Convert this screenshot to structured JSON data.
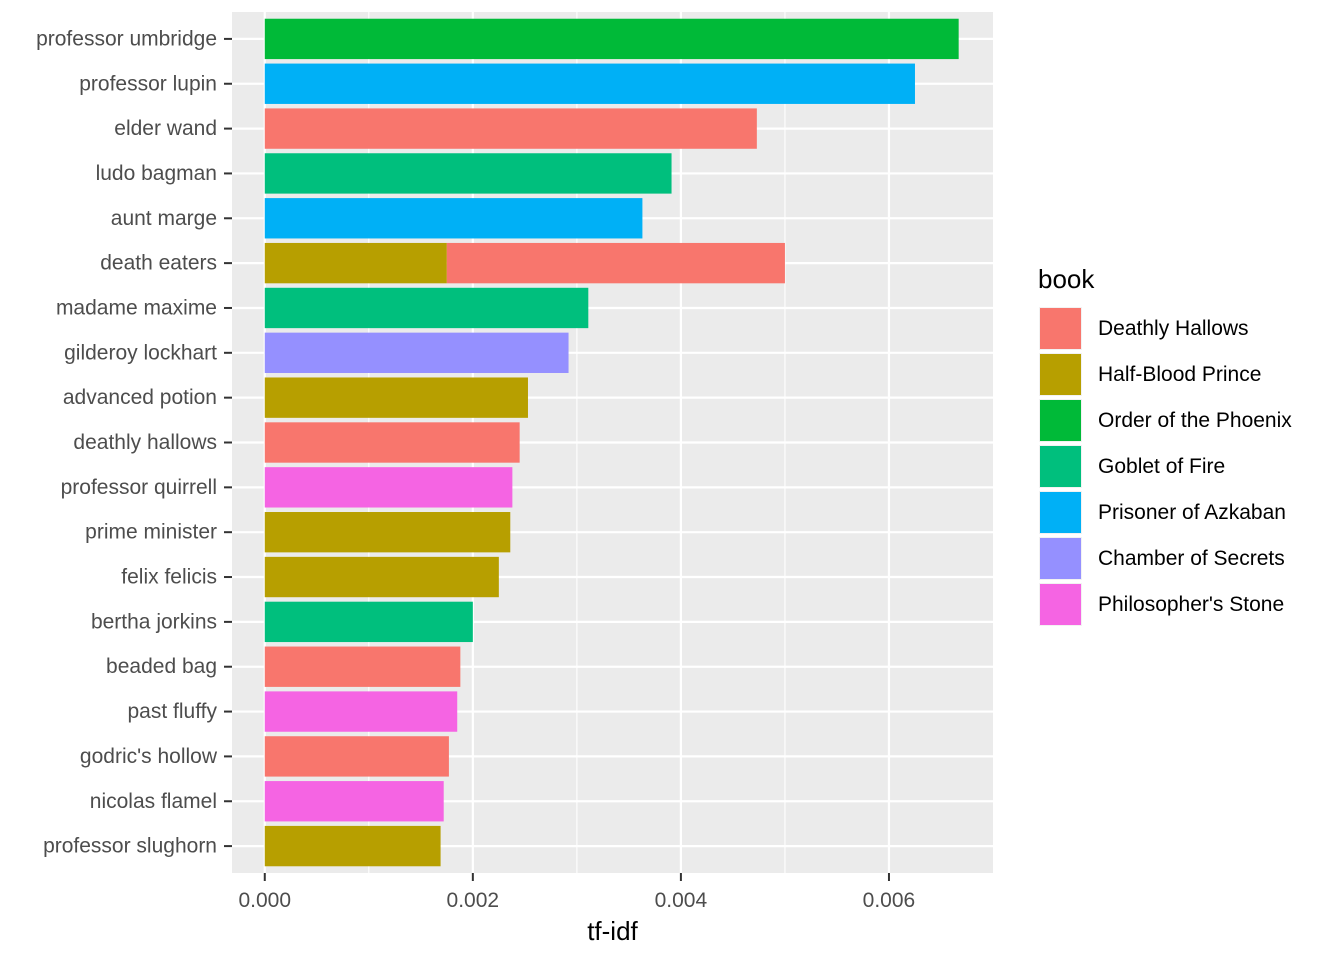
{
  "chart_data": {
    "type": "bar",
    "orientation": "horizontal",
    "stacked": true,
    "xlabel": "tf-idf",
    "ylabel": "",
    "xlim": [
      -0.000315,
      0.007
    ],
    "x_ticks": [
      {
        "value": 0.0,
        "label": "0.000"
      },
      {
        "value": 0.002,
        "label": "0.002"
      },
      {
        "value": 0.004,
        "label": "0.004"
      },
      {
        "value": 0.006,
        "label": "0.006"
      }
    ],
    "x_minor_ticks": [
      0.001,
      0.003,
      0.005
    ],
    "categories": [
      "professor umbridge",
      "professor lupin",
      "elder wand",
      "ludo bagman",
      "aunt marge",
      "death eaters",
      "madame maxime",
      "gilderoy lockhart",
      "advanced potion",
      "deathly hallows",
      "professor quirrell",
      "prime minister",
      "felix felicis",
      "bertha jorkins",
      "beaded bag",
      "past fluffy",
      "godric's hollow",
      "nicolas flamel",
      "professor slughorn"
    ],
    "bars": [
      {
        "category": "professor umbridge",
        "book": "Order of the Phoenix",
        "value": 0.00667
      },
      {
        "category": "professor lupin",
        "book": "Prisoner of Azkaban",
        "value": 0.00625
      },
      {
        "category": "elder wand",
        "book": "Deathly Hallows",
        "value": 0.00473
      },
      {
        "category": "ludo bagman",
        "book": "Goblet of Fire",
        "value": 0.00391
      },
      {
        "category": "aunt marge",
        "book": "Prisoner of Azkaban",
        "value": 0.00363
      },
      {
        "category": "death eaters",
        "book": "Half-Blood Prince",
        "value": 0.00175
      },
      {
        "category": "death eaters",
        "book": "Deathly Hallows",
        "value": 0.00325
      },
      {
        "category": "madame maxime",
        "book": "Goblet of Fire",
        "value": 0.00311
      },
      {
        "category": "gilderoy lockhart",
        "book": "Chamber of Secrets",
        "value": 0.00292
      },
      {
        "category": "advanced potion",
        "book": "Half-Blood Prince",
        "value": 0.00253
      },
      {
        "category": "deathly hallows",
        "book": "Deathly Hallows",
        "value": 0.00245
      },
      {
        "category": "professor quirrell",
        "book": "Philosopher's Stone",
        "value": 0.00238
      },
      {
        "category": "prime minister",
        "book": "Half-Blood Prince",
        "value": 0.00236
      },
      {
        "category": "felix felicis",
        "book": "Half-Blood Prince",
        "value": 0.00225
      },
      {
        "category": "bertha jorkins",
        "book": "Goblet of Fire",
        "value": 0.002
      },
      {
        "category": "beaded bag",
        "book": "Deathly Hallows",
        "value": 0.00188
      },
      {
        "category": "past fluffy",
        "book": "Philosopher's Stone",
        "value": 0.00185
      },
      {
        "category": "godric's hollow",
        "book": "Deathly Hallows",
        "value": 0.00177
      },
      {
        "category": "nicolas flamel",
        "book": "Philosopher's Stone",
        "value": 0.00172
      },
      {
        "category": "professor slughorn",
        "book": "Half-Blood Prince",
        "value": 0.00169
      }
    ],
    "legend": {
      "title": "book",
      "position": "right",
      "items": [
        {
          "name": "Deathly Hallows",
          "color": "#F8766D"
        },
        {
          "name": "Half-Blood Prince",
          "color": "#B79F00"
        },
        {
          "name": "Order of the Phoenix",
          "color": "#00BA38"
        },
        {
          "name": "Goblet of Fire",
          "color": "#00BF7D"
        },
        {
          "name": "Prisoner of Azkaban",
          "color": "#00B0F6"
        },
        {
          "name": "Chamber of Secrets",
          "color": "#9590FF"
        },
        {
          "name": "Philosopher's Stone",
          "color": "#F564E3"
        }
      ]
    },
    "grid": true,
    "panel_background": "#EBEBEB"
  }
}
